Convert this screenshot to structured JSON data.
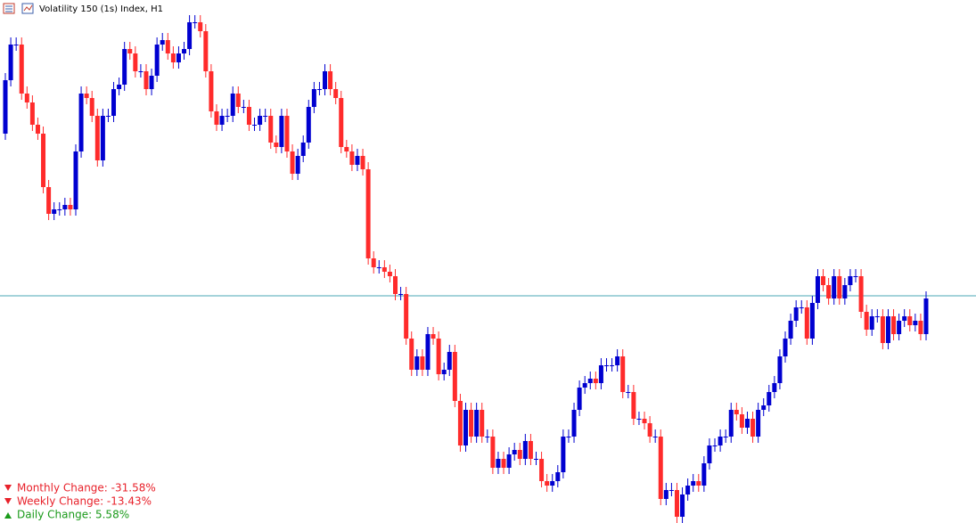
{
  "chart_data": {
    "type": "candlestick",
    "title": "Volatility 150 (1s) Index, H1",
    "ylim": [
      13,
      600
    ],
    "up_color": "#0000d0",
    "down_color": "#ff2b2b",
    "price_line": 268,
    "price_line_color": "#4aa7b5",
    "open": [
      450,
      510,
      550,
      550,
      495,
      485,
      460,
      450,
      390,
      360,
      365,
      365,
      370,
      365,
      430,
      495,
      490,
      470,
      420,
      470,
      470,
      500,
      505,
      545,
      540,
      520,
      520,
      500,
      515,
      550,
      555,
      540,
      530,
      540,
      545,
      575,
      575,
      565,
      520,
      475,
      460,
      470,
      470,
      495,
      480,
      480,
      460,
      460,
      470,
      470,
      440,
      435,
      470,
      430,
      405,
      425,
      440,
      480,
      500,
      500,
      520,
      500,
      490,
      435,
      430,
      415,
      425,
      410,
      310,
      300,
      300,
      295,
      290,
      270,
      270,
      220,
      185,
      200,
      185,
      225,
      220,
      180,
      185,
      205,
      150,
      100,
      140,
      110,
      140,
      110,
      110,
      75,
      85,
      75,
      90,
      95,
      85,
      105,
      85,
      85,
      60,
      55,
      60,
      70,
      110,
      110,
      140,
      165,
      170,
      175,
      170,
      190,
      190,
      190,
      200,
      160,
      160,
      130,
      130,
      125,
      110,
      110,
      40,
      50,
      50,
      20,
      45,
      55,
      60,
      55,
      80,
      100,
      100,
      110,
      110,
      140,
      135,
      120,
      130,
      110,
      140,
      145,
      160,
      170,
      200,
      220,
      240,
      255,
      255,
      220,
      260,
      290,
      280,
      265,
      290,
      265,
      280,
      290,
      290,
      250,
      230,
      245,
      245,
      215,
      245,
      225,
      240,
      245,
      235,
      240,
      225
    ],
    "high": [
      518,
      558,
      558,
      558,
      503,
      493,
      468,
      458,
      398,
      373,
      373,
      378,
      378,
      438,
      503,
      503,
      498,
      478,
      478,
      478,
      508,
      513,
      553,
      553,
      548,
      528,
      528,
      523,
      558,
      563,
      563,
      548,
      548,
      553,
      583,
      583,
      583,
      573,
      528,
      483,
      478,
      478,
      503,
      503,
      488,
      488,
      468,
      478,
      478,
      478,
      448,
      478,
      478,
      438,
      433,
      448,
      488,
      508,
      508,
      528,
      528,
      508,
      498,
      443,
      438,
      433,
      433,
      418,
      318,
      308,
      308,
      303,
      298,
      278,
      278,
      228,
      208,
      208,
      233,
      233,
      228,
      193,
      213,
      213,
      158,
      148,
      148,
      148,
      148,
      118,
      118,
      93,
      93,
      98,
      103,
      103,
      113,
      113,
      93,
      93,
      68,
      68,
      78,
      118,
      118,
      148,
      173,
      178,
      183,
      183,
      198,
      198,
      198,
      208,
      208,
      168,
      168,
      138,
      138,
      133,
      118,
      118,
      58,
      58,
      58,
      53,
      63,
      68,
      68,
      88,
      108,
      108,
      118,
      118,
      148,
      148,
      143,
      138,
      138,
      148,
      153,
      168,
      178,
      208,
      228,
      248,
      263,
      263,
      263,
      268,
      298,
      298,
      288,
      298,
      298,
      288,
      298,
      298,
      298,
      258,
      253,
      253,
      253,
      253,
      253,
      248,
      253,
      253,
      248,
      248,
      273
    ],
    "low": [
      443,
      503,
      543,
      488,
      478,
      453,
      443,
      383,
      353,
      353,
      358,
      358,
      358,
      358,
      423,
      483,
      463,
      413,
      413,
      463,
      463,
      493,
      498,
      533,
      513,
      513,
      493,
      493,
      508,
      543,
      533,
      523,
      523,
      533,
      538,
      568,
      558,
      513,
      468,
      453,
      453,
      463,
      463,
      473,
      473,
      453,
      453,
      453,
      463,
      433,
      428,
      428,
      423,
      398,
      398,
      418,
      433,
      473,
      493,
      493,
      493,
      483,
      428,
      423,
      408,
      408,
      403,
      303,
      293,
      293,
      288,
      283,
      263,
      263,
      213,
      178,
      178,
      178,
      178,
      213,
      173,
      173,
      178,
      143,
      93,
      93,
      103,
      103,
      103,
      103,
      68,
      68,
      68,
      68,
      83,
      78,
      78,
      78,
      78,
      53,
      48,
      48,
      53,
      63,
      103,
      103,
      133,
      158,
      163,
      163,
      163,
      183,
      183,
      183,
      153,
      153,
      123,
      123,
      118,
      103,
      103,
      33,
      33,
      43,
      13,
      13,
      38,
      48,
      48,
      48,
      73,
      93,
      93,
      103,
      103,
      128,
      113,
      113,
      103,
      103,
      133,
      138,
      153,
      163,
      193,
      213,
      233,
      248,
      213,
      213,
      253,
      273,
      258,
      258,
      258,
      258,
      273,
      283,
      243,
      223,
      223,
      238,
      208,
      208,
      218,
      218,
      233,
      228,
      228,
      218,
      218
    ],
    "close": [
      510,
      550,
      550,
      495,
      485,
      460,
      450,
      390,
      360,
      365,
      365,
      370,
      365,
      430,
      495,
      490,
      470,
      420,
      470,
      470,
      500,
      505,
      545,
      540,
      520,
      520,
      500,
      515,
      550,
      555,
      540,
      530,
      540,
      545,
      575,
      575,
      565,
      520,
      475,
      460,
      470,
      470,
      495,
      480,
      480,
      460,
      460,
      470,
      470,
      440,
      435,
      470,
      430,
      405,
      425,
      440,
      480,
      500,
      500,
      520,
      500,
      490,
      435,
      430,
      415,
      425,
      410,
      310,
      300,
      300,
      295,
      290,
      270,
      270,
      220,
      185,
      200,
      185,
      225,
      220,
      180,
      185,
      205,
      150,
      100,
      140,
      110,
      140,
      110,
      110,
      75,
      85,
      75,
      90,
      95,
      85,
      105,
      85,
      85,
      60,
      55,
      60,
      70,
      110,
      110,
      140,
      165,
      170,
      175,
      170,
      190,
      190,
      190,
      200,
      160,
      160,
      130,
      130,
      125,
      110,
      110,
      40,
      50,
      50,
      20,
      45,
      55,
      60,
      55,
      80,
      100,
      100,
      110,
      110,
      140,
      135,
      120,
      130,
      110,
      140,
      145,
      160,
      170,
      200,
      220,
      240,
      255,
      255,
      220,
      260,
      290,
      280,
      265,
      290,
      265,
      280,
      290,
      290,
      250,
      230,
      245,
      245,
      215,
      245,
      225,
      240,
      245,
      235,
      240,
      225,
      265
    ]
  },
  "info_panel": [
    {
      "text": "Monthly Change: -31.58%",
      "color": "#e8212a",
      "direction": "down"
    },
    {
      "text": "Weekly Change: -13.43%",
      "color": "#e8212a",
      "direction": "down"
    },
    {
      "text": "Daily Change: 5.58%",
      "color": "#1a9a1a",
      "direction": "up"
    }
  ]
}
